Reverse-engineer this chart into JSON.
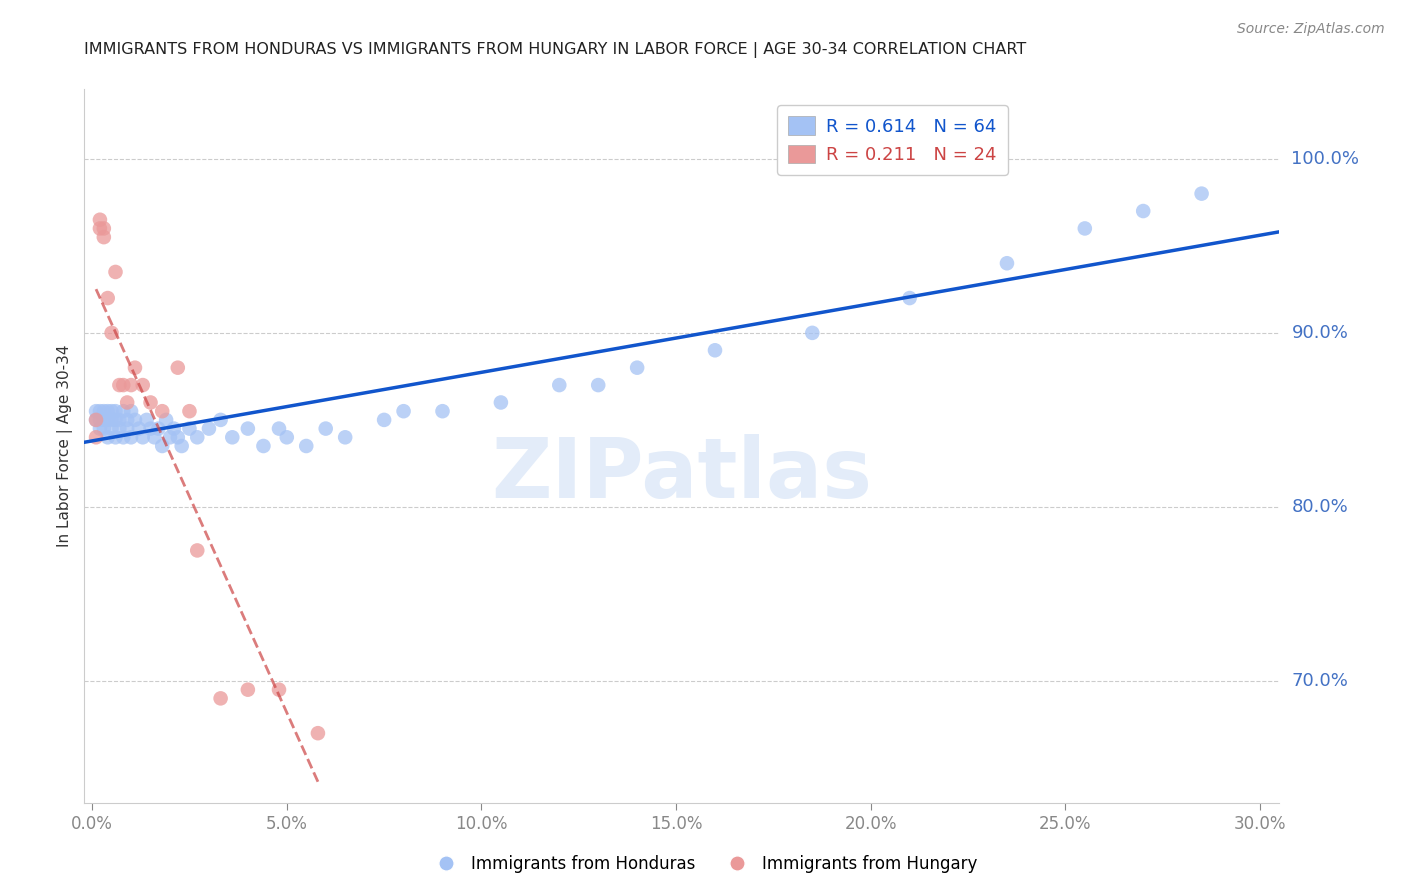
{
  "title": "IMMIGRANTS FROM HONDURAS VS IMMIGRANTS FROM HUNGARY IN LABOR FORCE | AGE 30-34 CORRELATION CHART",
  "source": "Source: ZipAtlas.com",
  "ylabel": "In Labor Force | Age 30-34",
  "watermark": "ZIPatlas",
  "xlim": [
    -0.002,
    0.305
  ],
  "ylim": [
    0.63,
    1.04
  ],
  "yticks": [
    0.7,
    0.8,
    0.9,
    1.0
  ],
  "xticks": [
    0.0,
    0.05,
    0.1,
    0.15,
    0.2,
    0.25,
    0.3
  ],
  "legend_label_blue": "R = 0.614   N = 64",
  "legend_label_pink": "R = 0.211   N = 24",
  "blue_scatter_color": "#a4c2f4",
  "pink_scatter_color": "#ea9999",
  "trend_blue_color": "#1155cc",
  "trend_pink_color": "#cc4444",
  "title_color": "#222222",
  "axis_label_color": "#333333",
  "right_axis_color": "#4472c4",
  "grid_color": "#cccccc",
  "background_color": "#ffffff",
  "honduras_x": [
    0.001,
    0.001,
    0.002,
    0.002,
    0.002,
    0.003,
    0.003,
    0.003,
    0.004,
    0.004,
    0.004,
    0.005,
    0.005,
    0.005,
    0.006,
    0.006,
    0.006,
    0.007,
    0.007,
    0.008,
    0.008,
    0.009,
    0.009,
    0.01,
    0.01,
    0.011,
    0.012,
    0.013,
    0.014,
    0.015,
    0.016,
    0.017,
    0.018,
    0.019,
    0.02,
    0.021,
    0.022,
    0.023,
    0.025,
    0.027,
    0.03,
    0.033,
    0.036,
    0.04,
    0.044,
    0.048,
    0.055,
    0.065,
    0.075,
    0.09,
    0.105,
    0.12,
    0.14,
    0.16,
    0.185,
    0.21,
    0.235,
    0.255,
    0.27,
    0.285,
    0.05,
    0.06,
    0.08,
    0.13
  ],
  "honduras_y": [
    0.85,
    0.855,
    0.855,
    0.845,
    0.85,
    0.85,
    0.845,
    0.855,
    0.85,
    0.84,
    0.855,
    0.845,
    0.85,
    0.855,
    0.84,
    0.855,
    0.85,
    0.845,
    0.85,
    0.84,
    0.855,
    0.85,
    0.845,
    0.84,
    0.855,
    0.85,
    0.845,
    0.84,
    0.85,
    0.845,
    0.84,
    0.845,
    0.835,
    0.85,
    0.84,
    0.845,
    0.84,
    0.835,
    0.845,
    0.84,
    0.845,
    0.85,
    0.84,
    0.845,
    0.835,
    0.845,
    0.835,
    0.84,
    0.85,
    0.855,
    0.86,
    0.87,
    0.88,
    0.89,
    0.9,
    0.92,
    0.94,
    0.96,
    0.97,
    0.98,
    0.84,
    0.845,
    0.855,
    0.87
  ],
  "hungary_x": [
    0.001,
    0.001,
    0.002,
    0.002,
    0.003,
    0.003,
    0.004,
    0.005,
    0.006,
    0.007,
    0.008,
    0.009,
    0.01,
    0.011,
    0.013,
    0.015,
    0.018,
    0.022,
    0.027,
    0.033,
    0.04,
    0.048,
    0.058,
    0.025
  ],
  "hungary_y": [
    0.84,
    0.85,
    0.96,
    0.965,
    0.96,
    0.955,
    0.92,
    0.9,
    0.935,
    0.87,
    0.87,
    0.86,
    0.87,
    0.88,
    0.87,
    0.86,
    0.855,
    0.88,
    0.775,
    0.69,
    0.695,
    0.695,
    0.67,
    0.855
  ]
}
